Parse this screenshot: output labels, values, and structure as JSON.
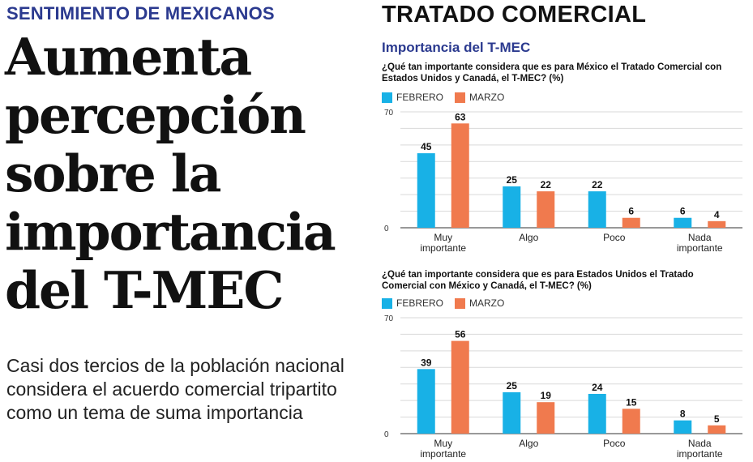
{
  "left": {
    "kicker": "SENTIMIENTO DE MEXICANOS",
    "headline_lines": [
      "Aumenta",
      "percepción",
      "sobre la",
      "importancia",
      "del T-MEC"
    ],
    "deck": "Casi dos tercios de la población nacional considera el acuerdo comercial tripartito como un tema de suma importancia"
  },
  "right": {
    "section_title": "TRATADO COMERCIAL",
    "subtitle": "Importancia del T-MEC"
  },
  "colors": {
    "febrero": "#18b1e6",
    "marzo": "#f07a4e",
    "navy": "#2b3a8f"
  },
  "chart_data": [
    {
      "type": "bar",
      "question": "¿Qué tan importante considera que es para México el Tratado Comercial con Estados Unidos y Canadá, el T-MEC? (%)",
      "categories": [
        [
          "Muy",
          "importante"
        ],
        [
          "Algo"
        ],
        [
          "Poco"
        ],
        [
          "Nada",
          "importante"
        ]
      ],
      "series": [
        {
          "name": "FEBRERO",
          "values": [
            45,
            25,
            22,
            6
          ]
        },
        {
          "name": "MARZO",
          "values": [
            63,
            22,
            6,
            4
          ]
        }
      ],
      "ylim": [
        0,
        70
      ],
      "ytick_labels": [
        "0",
        "70"
      ],
      "grid": true,
      "legend_position": "top-left"
    },
    {
      "type": "bar",
      "question": "¿Qué tan importante considera que es para Estados Unidos el Tratado Comercial con México y Canadá, el T-MEC? (%)",
      "categories": [
        [
          "Muy",
          "importante"
        ],
        [
          "Algo"
        ],
        [
          "Poco"
        ],
        [
          "Nada",
          "importante"
        ]
      ],
      "series": [
        {
          "name": "FEBRERO",
          "values": [
            39,
            25,
            24,
            8
          ]
        },
        {
          "name": "MARZO",
          "values": [
            56,
            19,
            15,
            5
          ]
        }
      ],
      "ylim": [
        0,
        70
      ],
      "ytick_labels": [
        "0",
        "70"
      ],
      "grid": true,
      "legend_position": "top-left"
    }
  ]
}
